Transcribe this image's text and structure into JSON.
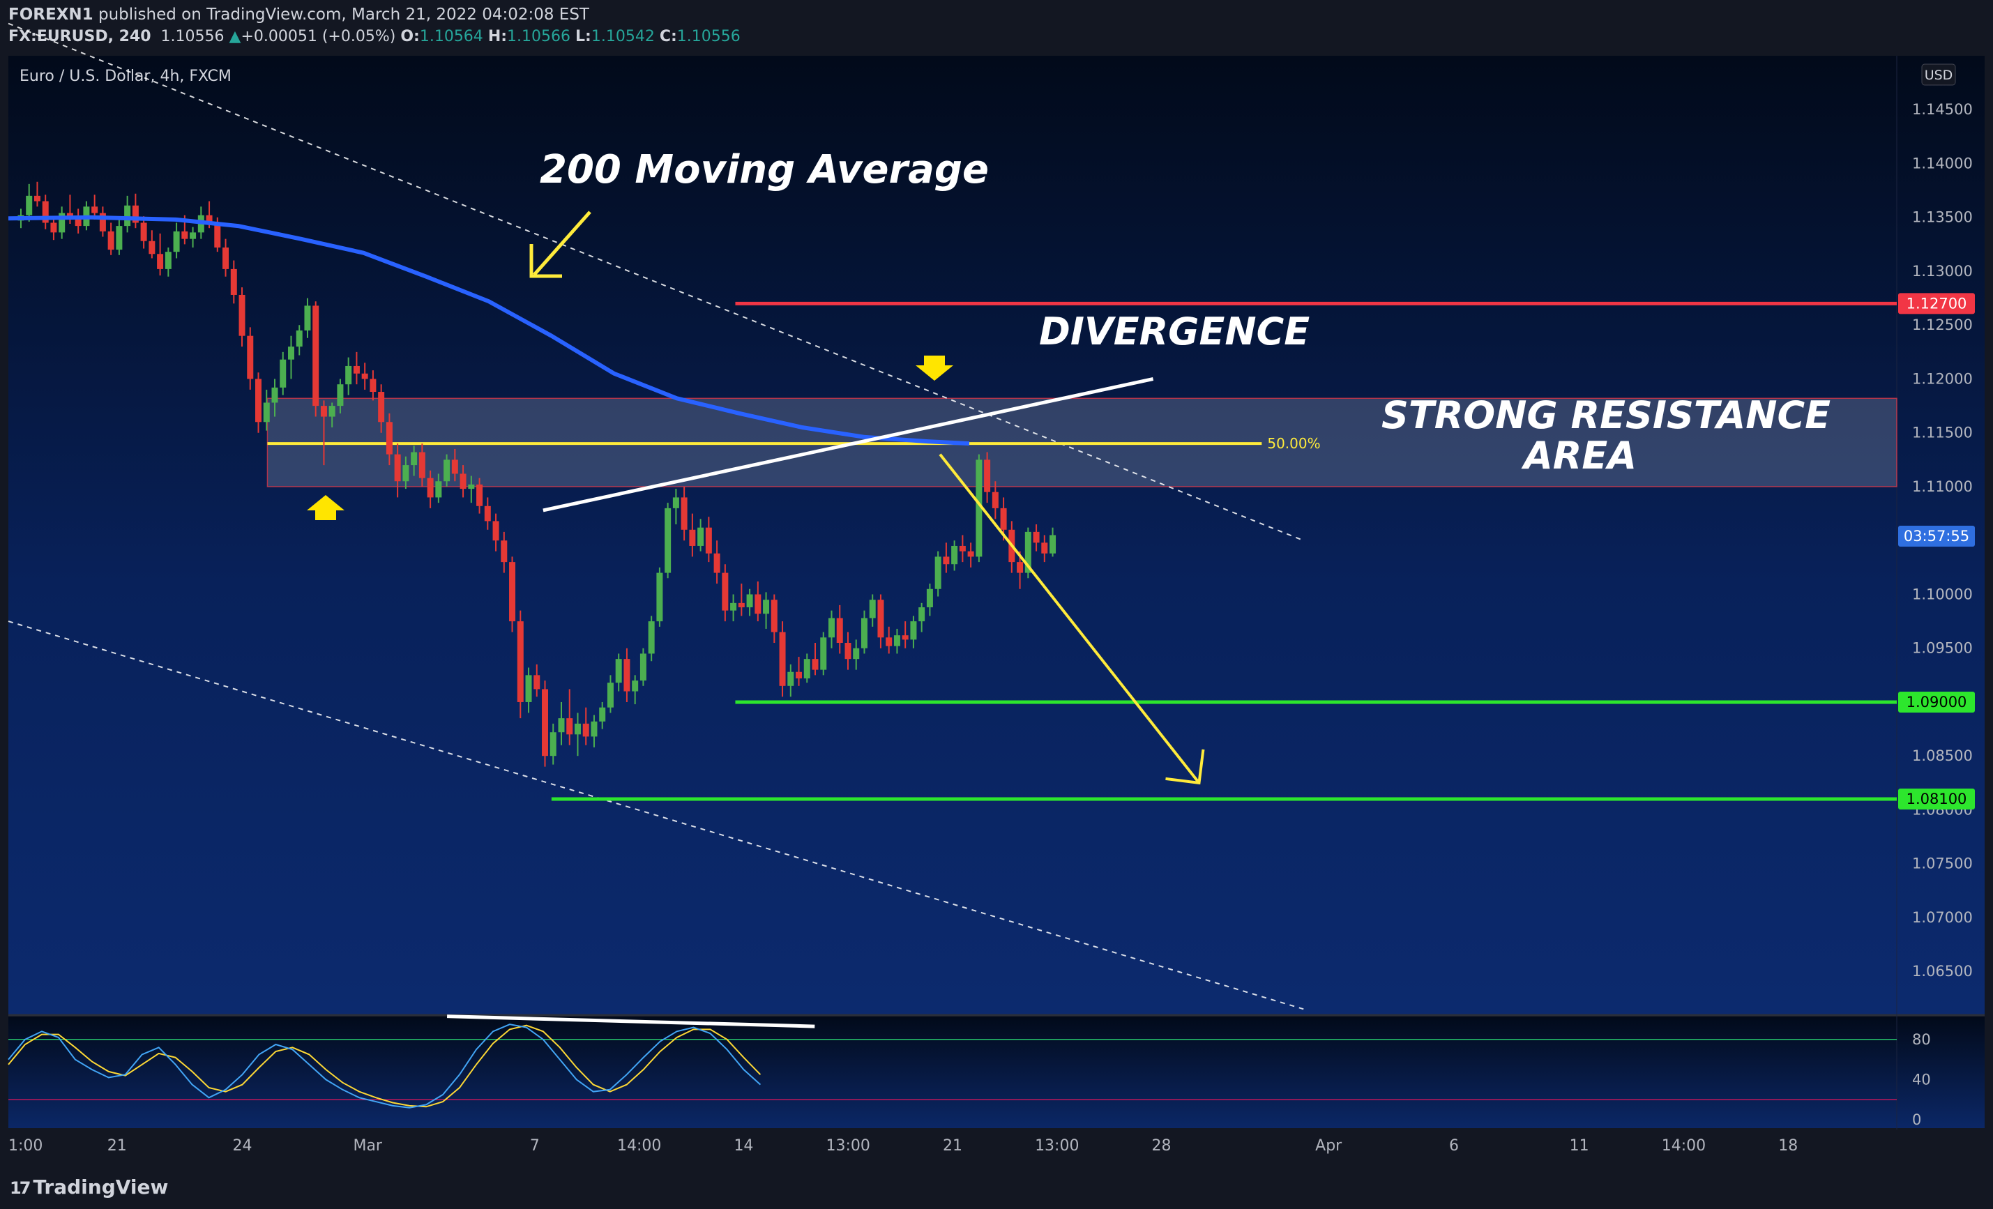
{
  "header": {
    "publisher": "FOREXN1",
    "published_text": "published on TradingView.com, March 21, 2022 04:02:08 EST",
    "symbol": "FX:EURUSD, 240",
    "price": "1.10556",
    "change_arrow": "▲",
    "change": "+0.00051 (+0.05%)",
    "o_label": "O:",
    "o": "1.10564",
    "h_label": "H:",
    "h": "1.10566",
    "l_label": "L:",
    "l": "1.10542",
    "c_label": "C:",
    "c": "1.10556"
  },
  "chart_data": {
    "type": "candlestick",
    "title": "Euro / U.S. Dollar, 4h, FXCM",
    "currency": "USD",
    "ylim": [
      1.061,
      1.15
    ],
    "y_ticks": [
      "1.14500",
      "1.14000",
      "1.13500",
      "1.13000",
      "1.12500",
      "1.12000",
      "1.11500",
      "1.11000",
      "1.10500",
      "1.10000",
      "1.09500",
      "1.09000",
      "1.08500",
      "1.08000",
      "1.07500",
      "1.07000",
      "1.06500"
    ],
    "x_ticks": [
      {
        "label": "1:00",
        "x": 0.0
      },
      {
        "label": "21",
        "x": 52
      },
      {
        "label": "24",
        "x": 112
      },
      {
        "label": "Mar",
        "x": 172
      },
      {
        "label": "7",
        "x": 252
      },
      {
        "label": "14:00",
        "x": 302
      },
      {
        "label": "14",
        "x": 352
      },
      {
        "label": "13:00",
        "x": 402
      },
      {
        "label": "21",
        "x": 452
      },
      {
        "label": "13:00",
        "x": 502
      },
      {
        "label": "28",
        "x": 552
      },
      {
        "label": "Apr",
        "x": 632
      },
      {
        "label": "6",
        "x": 692
      },
      {
        "label": "11",
        "x": 752
      },
      {
        "label": "14:00",
        "x": 802
      },
      {
        "label": "18",
        "x": 852
      }
    ],
    "x_domain": [
      0,
      904
    ],
    "levels": [
      {
        "name": "1.12700",
        "price": 1.127,
        "color": "#f23645",
        "x_start": 348
      },
      {
        "name": "1.09000",
        "price": 1.09,
        "color": "#2de62d",
        "x_start": 348
      },
      {
        "name": "1.08100",
        "price": 1.081,
        "color": "#2de62d",
        "x_start": 260
      }
    ],
    "countdown": "03:57:55",
    "countdown_price": 1.1054,
    "resistance_zone": {
      "top": 1.1182,
      "bottom": 1.11,
      "x_start": 124
    },
    "fib_50": {
      "price": 1.114,
      "label": "50.00%",
      "x_start": 124,
      "x_end": 600
    },
    "moving_average_200": [
      [
        0,
        1.1349
      ],
      [
        40,
        1.135
      ],
      [
        80,
        1.1348
      ],
      [
        110,
        1.1342
      ],
      [
        140,
        1.133
      ],
      [
        170,
        1.1317
      ],
      [
        200,
        1.1295
      ],
      [
        230,
        1.1272
      ],
      [
        260,
        1.124
      ],
      [
        290,
        1.1205
      ],
      [
        320,
        1.1182
      ],
      [
        350,
        1.1168
      ],
      [
        380,
        1.1155
      ],
      [
        410,
        1.1146
      ],
      [
        440,
        1.1142
      ],
      [
        460,
        1.114
      ]
    ],
    "trendline_upper": [
      [
        0,
        1.153
      ],
      [
        620,
        1.105
      ]
    ],
    "trendline_lower": [
      [
        0,
        1.0975
      ],
      [
        620,
        1.0615
      ]
    ],
    "divergence_line": [
      [
        256,
        1.1078
      ],
      [
        548,
        1.12
      ]
    ],
    "projection_arrow": [
      [
        446,
        1.113
      ],
      [
        570,
        1.0825
      ]
    ],
    "candles": [
      [
        1.1347,
        1.1358,
        1.134,
        1.1352
      ],
      [
        1.1352,
        1.1381,
        1.1346,
        1.137
      ],
      [
        1.137,
        1.1383,
        1.136,
        1.1365
      ],
      [
        1.1365,
        1.1371,
        1.1339,
        1.1345
      ],
      [
        1.1345,
        1.135,
        1.1329,
        1.1336
      ],
      [
        1.1336,
        1.136,
        1.133,
        1.1354
      ],
      [
        1.1354,
        1.1371,
        1.1344,
        1.1349
      ],
      [
        1.1349,
        1.1358,
        1.1335,
        1.1342
      ],
      [
        1.1342,
        1.1365,
        1.1338,
        1.136
      ],
      [
        1.136,
        1.1371,
        1.1348,
        1.1354
      ],
      [
        1.1354,
        1.136,
        1.1332,
        1.1337
      ],
      [
        1.1337,
        1.1345,
        1.1315,
        1.132
      ],
      [
        1.132,
        1.1348,
        1.1315,
        1.1342
      ],
      [
        1.1342,
        1.137,
        1.1336,
        1.1361
      ],
      [
        1.1361,
        1.1372,
        1.134,
        1.1345
      ],
      [
        1.1345,
        1.1351,
        1.1321,
        1.1328
      ],
      [
        1.1328,
        1.1338,
        1.1312,
        1.1316
      ],
      [
        1.1316,
        1.1335,
        1.1296,
        1.1302
      ],
      [
        1.1302,
        1.1322,
        1.1295,
        1.1318
      ],
      [
        1.1318,
        1.1345,
        1.1312,
        1.1337
      ],
      [
        1.1337,
        1.1352,
        1.1325,
        1.133
      ],
      [
        1.133,
        1.1341,
        1.1322,
        1.1336
      ],
      [
        1.1336,
        1.136,
        1.133,
        1.1352
      ],
      [
        1.1352,
        1.1365,
        1.134,
        1.1345
      ],
      [
        1.1345,
        1.135,
        1.1318,
        1.1322
      ],
      [
        1.1322,
        1.133,
        1.1295,
        1.1302
      ],
      [
        1.1302,
        1.131,
        1.127,
        1.1278
      ],
      [
        1.1278,
        1.1285,
        1.123,
        1.124
      ],
      [
        1.124,
        1.1248,
        1.119,
        1.12
      ],
      [
        1.12,
        1.1206,
        1.115,
        1.116
      ],
      [
        1.116,
        1.119,
        1.1152,
        1.1178
      ],
      [
        1.1178,
        1.12,
        1.1165,
        1.1192
      ],
      [
        1.1192,
        1.1225,
        1.1185,
        1.1218
      ],
      [
        1.1218,
        1.124,
        1.12,
        1.123
      ],
      [
        1.123,
        1.125,
        1.1222,
        1.1245
      ],
      [
        1.1245,
        1.1275,
        1.1238,
        1.1268
      ],
      [
        1.1268,
        1.1272,
        1.1165,
        1.1175
      ],
      [
        1.1175,
        1.118,
        1.112,
        1.1165
      ],
      [
        1.1165,
        1.1178,
        1.1155,
        1.1175
      ],
      [
        1.1175,
        1.12,
        1.1168,
        1.1195
      ],
      [
        1.1195,
        1.122,
        1.1185,
        1.1212
      ],
      [
        1.1212,
        1.1225,
        1.1195,
        1.1205
      ],
      [
        1.1205,
        1.1215,
        1.119,
        1.12
      ],
      [
        1.12,
        1.1208,
        1.118,
        1.1188
      ],
      [
        1.1188,
        1.1195,
        1.115,
        1.116
      ],
      [
        1.116,
        1.1168,
        1.112,
        1.113
      ],
      [
        1.113,
        1.114,
        1.109,
        1.1105
      ],
      [
        1.1105,
        1.1128,
        1.1098,
        1.112
      ],
      [
        1.112,
        1.1138,
        1.111,
        1.1132
      ],
      [
        1.1132,
        1.114,
        1.11,
        1.1108
      ],
      [
        1.1108,
        1.1115,
        1.108,
        1.109
      ],
      [
        1.109,
        1.1112,
        1.1085,
        1.1105
      ],
      [
        1.1105,
        1.113,
        1.11,
        1.1125
      ],
      [
        1.1125,
        1.1135,
        1.1105,
        1.1112
      ],
      [
        1.1112,
        1.112,
        1.109,
        1.1098
      ],
      [
        1.1098,
        1.111,
        1.1085,
        1.1102
      ],
      [
        1.1102,
        1.1108,
        1.1075,
        1.1082
      ],
      [
        1.1082,
        1.109,
        1.106,
        1.1068
      ],
      [
        1.1068,
        1.1075,
        1.104,
        1.105
      ],
      [
        1.105,
        1.1058,
        1.102,
        1.103
      ],
      [
        1.103,
        1.1035,
        1.0965,
        1.0975
      ],
      [
        1.0975,
        1.0985,
        1.0885,
        1.09
      ],
      [
        1.09,
        1.0932,
        1.089,
        1.0925
      ],
      [
        1.0925,
        1.0935,
        1.0905,
        1.0912
      ],
      [
        1.0912,
        1.092,
        1.084,
        1.085
      ],
      [
        1.085,
        1.088,
        1.0842,
        1.0872
      ],
      [
        1.0872,
        1.09,
        1.086,
        1.0885
      ],
      [
        1.0885,
        1.0912,
        1.086,
        1.087
      ],
      [
        1.087,
        1.089,
        1.085,
        1.088
      ],
      [
        1.088,
        1.0895,
        1.086,
        1.0868
      ],
      [
        1.0868,
        1.0888,
        1.0858,
        1.0882
      ],
      [
        1.0882,
        1.09,
        1.0875,
        1.0895
      ],
      [
        1.0895,
        1.0925,
        1.089,
        1.0918
      ],
      [
        1.0918,
        1.0945,
        1.091,
        1.094
      ],
      [
        1.094,
        1.095,
        1.09,
        1.091
      ],
      [
        1.091,
        1.0925,
        1.0898,
        1.092
      ],
      [
        1.092,
        1.095,
        1.0915,
        1.0945
      ],
      [
        1.0945,
        1.098,
        1.0938,
        1.0975
      ],
      [
        1.0975,
        1.1025,
        1.097,
        1.102
      ],
      [
        1.102,
        1.1085,
        1.1015,
        1.108
      ],
      [
        1.108,
        1.1098,
        1.1065,
        1.109
      ],
      [
        1.109,
        1.11,
        1.105,
        1.106
      ],
      [
        1.106,
        1.1075,
        1.1035,
        1.1045
      ],
      [
        1.1045,
        1.107,
        1.104,
        1.1062
      ],
      [
        1.1062,
        1.1072,
        1.103,
        1.1038
      ],
      [
        1.1038,
        1.105,
        1.101,
        1.102
      ],
      [
        1.102,
        1.1028,
        1.0975,
        1.0985
      ],
      [
        1.0985,
        1.1,
        1.0975,
        1.0992
      ],
      [
        1.0992,
        1.101,
        1.098,
        1.0988
      ],
      [
        1.0988,
        1.1005,
        1.098,
        1.1
      ],
      [
        1.1,
        1.1012,
        1.0975,
        1.0982
      ],
      [
        1.0982,
        1.1002,
        1.0968,
        1.0995
      ],
      [
        1.0995,
        1.1,
        1.0955,
        1.0965
      ],
      [
        1.0965,
        1.0975,
        1.0905,
        1.0915
      ],
      [
        1.0915,
        1.0935,
        1.0905,
        1.0928
      ],
      [
        1.0928,
        1.0942,
        1.0915,
        1.0922
      ],
      [
        1.0922,
        1.0945,
        1.0918,
        1.094
      ],
      [
        1.094,
        1.0955,
        1.0925,
        1.093
      ],
      [
        1.093,
        1.0965,
        1.0925,
        1.096
      ],
      [
        1.096,
        1.0985,
        1.095,
        1.0978
      ],
      [
        1.0978,
        1.099,
        1.0945,
        1.0955
      ],
      [
        1.0955,
        1.0965,
        1.093,
        1.094
      ],
      [
        1.094,
        1.0958,
        1.093,
        1.095
      ],
      [
        1.095,
        1.0985,
        1.0945,
        1.0978
      ],
      [
        1.0978,
        1.1,
        1.097,
        1.0995
      ],
      [
        1.0995,
        1.1,
        1.095,
        1.096
      ],
      [
        1.096,
        1.097,
        1.0945,
        1.0952
      ],
      [
        1.0952,
        1.0968,
        1.0945,
        1.0962
      ],
      [
        1.0962,
        1.0975,
        1.095,
        1.0958
      ],
      [
        1.0958,
        1.098,
        1.095,
        1.0975
      ],
      [
        1.0975,
        1.0992,
        1.0965,
        1.0988
      ],
      [
        1.0988,
        1.101,
        1.098,
        1.1005
      ],
      [
        1.1005,
        1.104,
        1.0998,
        1.1035
      ],
      [
        1.1035,
        1.1048,
        1.102,
        1.1028
      ],
      [
        1.1028,
        1.105,
        1.1022,
        1.1045
      ],
      [
        1.1045,
        1.1055,
        1.103,
        1.104
      ],
      [
        1.104,
        1.1048,
        1.1025,
        1.1035
      ],
      [
        1.1035,
        1.113,
        1.103,
        1.1125
      ],
      [
        1.1125,
        1.1132,
        1.1085,
        1.1095
      ],
      [
        1.1095,
        1.1105,
        1.107,
        1.108
      ],
      [
        1.108,
        1.109,
        1.105,
        1.106
      ],
      [
        1.106,
        1.1068,
        1.102,
        1.103
      ],
      [
        1.103,
        1.104,
        1.1005,
        1.102
      ],
      [
        1.102,
        1.1062,
        1.1015,
        1.1058
      ],
      [
        1.1058,
        1.1065,
        1.104,
        1.1048
      ],
      [
        1.1048,
        1.1055,
        1.103,
        1.1038
      ],
      [
        1.1038,
        1.1062,
        1.1035,
        1.1055
      ]
    ],
    "candle_x_start": 6,
    "candle_spacing": 3.92,
    "stochastic": {
      "ylim": [
        0,
        100
      ],
      "y_ticks": [
        "80",
        "40",
        "0"
      ],
      "overbought": 80,
      "oversold": 20,
      "k": [
        [
          0,
          60
        ],
        [
          8,
          80
        ],
        [
          16,
          88
        ],
        [
          24,
          82
        ],
        [
          32,
          60
        ],
        [
          40,
          50
        ],
        [
          48,
          42
        ],
        [
          56,
          45
        ],
        [
          64,
          65
        ],
        [
          72,
          72
        ],
        [
          80,
          55
        ],
        [
          88,
          35
        ],
        [
          96,
          22
        ],
        [
          104,
          30
        ],
        [
          112,
          45
        ],
        [
          120,
          65
        ],
        [
          128,
          75
        ],
        [
          136,
          70
        ],
        [
          144,
          55
        ],
        [
          152,
          40
        ],
        [
          160,
          30
        ],
        [
          168,
          22
        ],
        [
          176,
          18
        ],
        [
          184,
          14
        ],
        [
          192,
          12
        ],
        [
          200,
          15
        ],
        [
          208,
          25
        ],
        [
          216,
          45
        ],
        [
          224,
          70
        ],
        [
          232,
          88
        ],
        [
          240,
          95
        ],
        [
          248,
          92
        ],
        [
          256,
          80
        ],
        [
          264,
          60
        ],
        [
          272,
          40
        ],
        [
          280,
          28
        ],
        [
          288,
          30
        ],
        [
          296,
          45
        ],
        [
          304,
          62
        ],
        [
          312,
          78
        ],
        [
          320,
          88
        ],
        [
          328,
          92
        ],
        [
          336,
          86
        ],
        [
          344,
          70
        ],
        [
          352,
          50
        ],
        [
          360,
          35
        ]
      ],
      "d": [
        [
          0,
          55
        ],
        [
          8,
          75
        ],
        [
          16,
          85
        ],
        [
          24,
          85
        ],
        [
          32,
          72
        ],
        [
          40,
          58
        ],
        [
          48,
          48
        ],
        [
          56,
          44
        ],
        [
          64,
          55
        ],
        [
          72,
          66
        ],
        [
          80,
          62
        ],
        [
          88,
          48
        ],
        [
          96,
          32
        ],
        [
          104,
          28
        ],
        [
          112,
          35
        ],
        [
          120,
          52
        ],
        [
          128,
          68
        ],
        [
          136,
          72
        ],
        [
          144,
          65
        ],
        [
          152,
          50
        ],
        [
          160,
          37
        ],
        [
          168,
          28
        ],
        [
          176,
          22
        ],
        [
          184,
          17
        ],
        [
          192,
          14
        ],
        [
          200,
          13
        ],
        [
          208,
          18
        ],
        [
          216,
          32
        ],
        [
          224,
          55
        ],
        [
          232,
          76
        ],
        [
          240,
          90
        ],
        [
          248,
          94
        ],
        [
          256,
          88
        ],
        [
          264,
          72
        ],
        [
          272,
          52
        ],
        [
          280,
          35
        ],
        [
          288,
          28
        ],
        [
          296,
          35
        ],
        [
          304,
          50
        ],
        [
          312,
          68
        ],
        [
          320,
          82
        ],
        [
          328,
          90
        ],
        [
          336,
          90
        ],
        [
          344,
          80
        ],
        [
          352,
          62
        ],
        [
          360,
          45
        ]
      ],
      "divergence_line": [
        [
          210,
          103
        ],
        [
          386,
          93
        ]
      ]
    }
  },
  "annotations": {
    "ma_label": "200 Moving Average",
    "divergence_label": "DIVERGENCE",
    "resistance_label_1": "STRONG RESISTANCE",
    "resistance_label_2": "AREA"
  },
  "footer": {
    "logo_mark": "17",
    "logo_text": "TradingView"
  },
  "colors": {
    "bull": "#4caf50",
    "bear": "#e53935",
    "ma": "#2962ff",
    "zone": "#9098b0",
    "fib": "#ffeb3b",
    "annotation": "#ffeb3b",
    "k_line": "#42a5f5",
    "d_line": "#fdd835"
  }
}
